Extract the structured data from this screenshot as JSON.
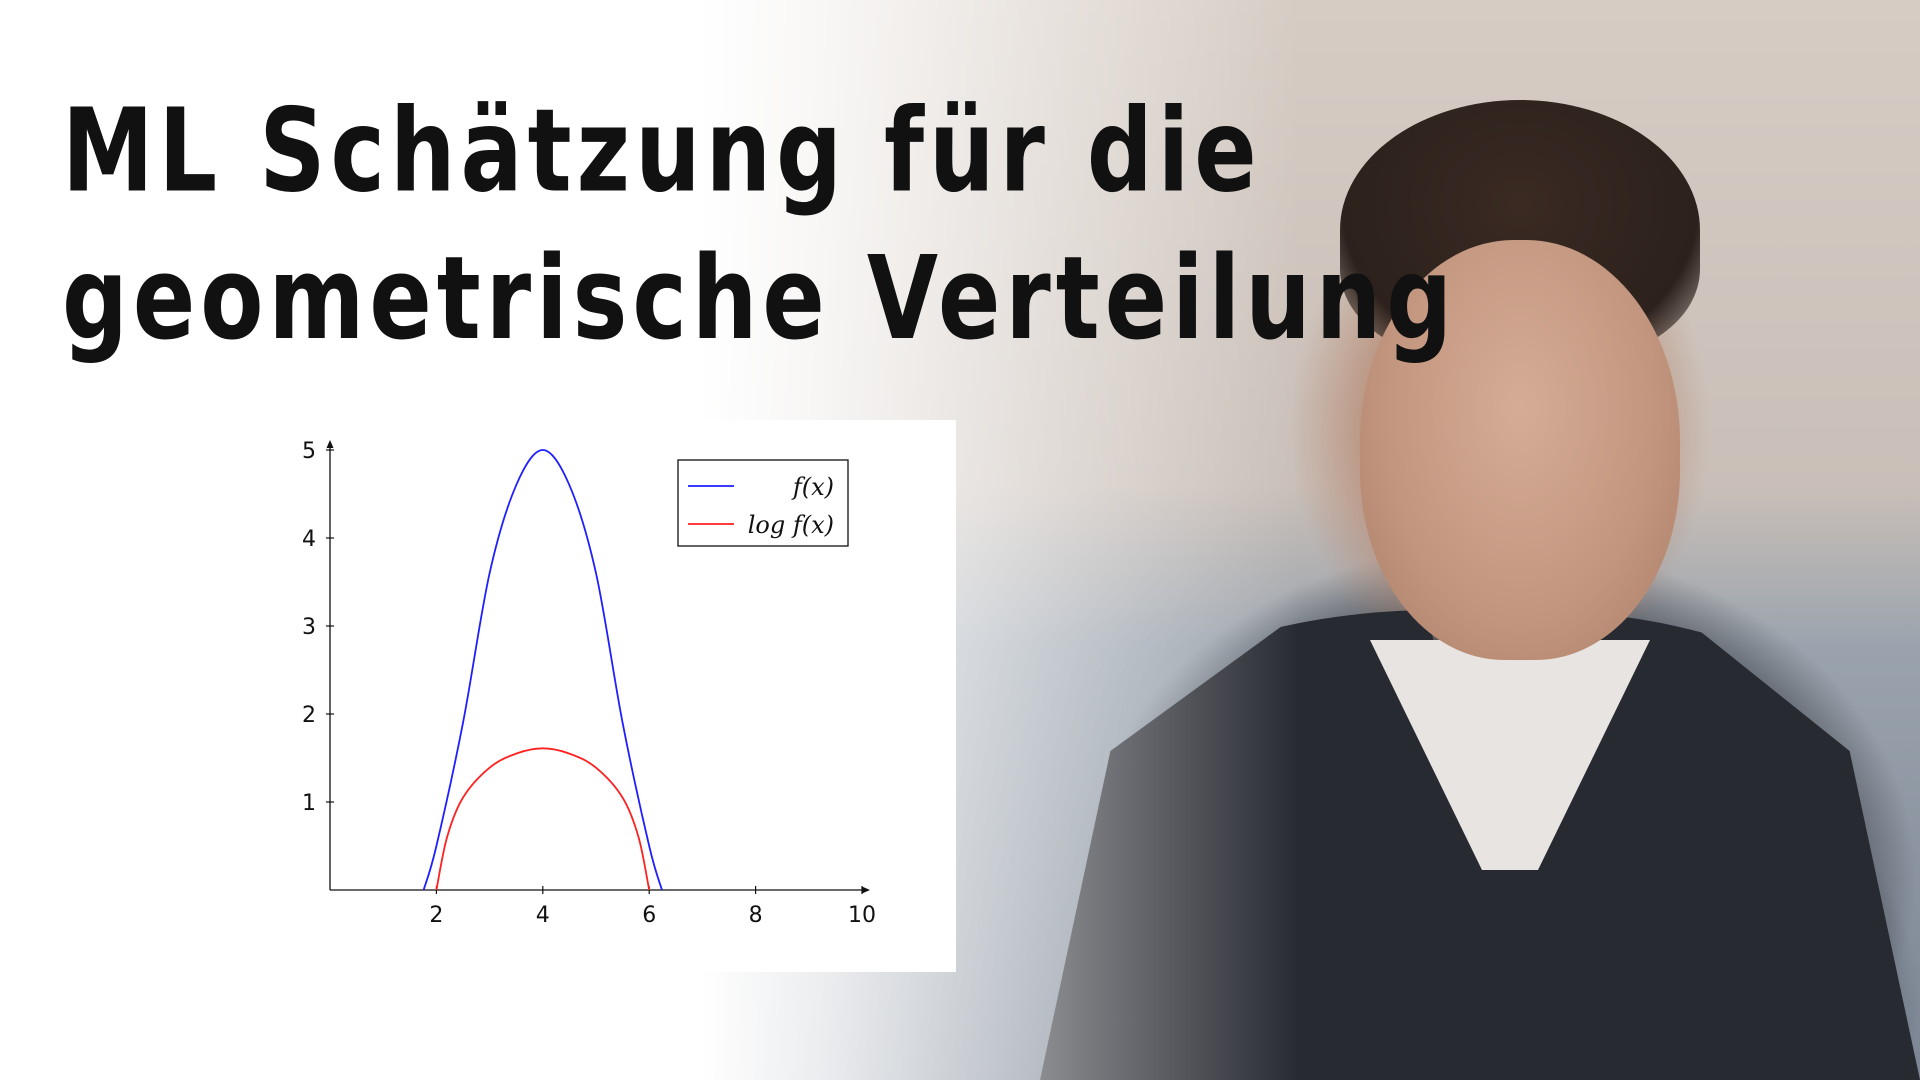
{
  "title": {
    "line1": "ML Schätzung für die",
    "line2": "geometrische Verteilung"
  },
  "chart_data": {
    "type": "line",
    "xlabel": "",
    "ylabel": "",
    "xlim": [
      0,
      10
    ],
    "ylim": [
      0,
      5
    ],
    "xticks": [
      2,
      4,
      6,
      8,
      10
    ],
    "yticks": [
      1,
      2,
      3,
      4,
      5
    ],
    "legend_position": "top-right",
    "grid": false,
    "series": [
      {
        "name": "f(x)",
        "color": "#1f1fff",
        "x": [
          1.76,
          2.0,
          2.5,
          3.0,
          3.5,
          4.0,
          4.5,
          5.0,
          5.5,
          6.0,
          6.24
        ],
        "y": [
          0.0,
          0.5,
          1.9,
          3.6,
          4.6,
          5.0,
          4.6,
          3.6,
          1.9,
          0.5,
          0.0
        ]
      },
      {
        "name": "log f(x)",
        "color": "#ff2020",
        "x": [
          2.0,
          2.2,
          2.5,
          3.0,
          3.5,
          4.0,
          4.5,
          5.0,
          5.5,
          5.8,
          6.0
        ],
        "y": [
          0.0,
          0.6,
          1.05,
          1.39,
          1.55,
          1.61,
          1.55,
          1.39,
          1.05,
          0.6,
          0.0
        ]
      }
    ]
  }
}
